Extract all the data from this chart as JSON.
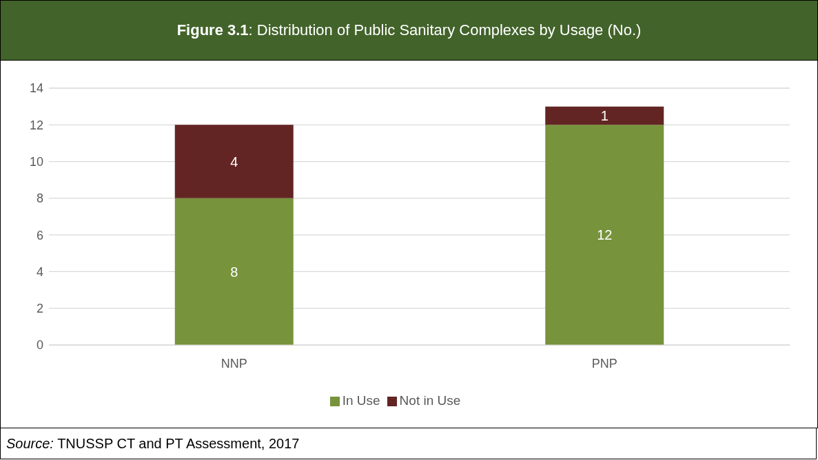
{
  "chart_data": {
    "type": "bar",
    "title": "Figure 3.1: Distribution of Public Sanitary Complexes by Usage (No.)",
    "categories": [
      "NNP",
      "PNP"
    ],
    "stacked": true,
    "series": [
      {
        "name": "In Use",
        "color": "#77933c",
        "values": [
          8,
          12
        ]
      },
      {
        "name": "Not in Use",
        "color": "#632523",
        "values": [
          4,
          1
        ]
      }
    ],
    "ylim": [
      0,
      14
    ],
    "yticks": [
      0,
      2,
      4,
      6,
      8,
      10,
      12,
      14
    ],
    "grid": "y",
    "legend": "bottom",
    "data_labels": true,
    "annotations": [
      "Source: TNUSSP CT and PT Assessment, 2017"
    ]
  }
}
